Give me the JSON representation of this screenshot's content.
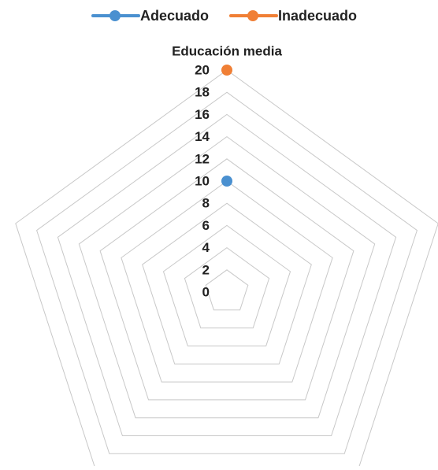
{
  "chart_data": {
    "type": "radar",
    "categories": [
      "Educación media",
      "",
      "",
      "",
      ""
    ],
    "series": [
      {
        "name": "Adecuado",
        "color": "#4A90D0",
        "values": [
          10,
          null,
          null,
          null,
          null
        ]
      },
      {
        "name": "Inadecuado",
        "color": "#F07F35",
        "values": [
          20,
          null,
          null,
          null,
          null
        ]
      }
    ],
    "rlim": [
      0,
      20
    ],
    "ticks": [
      0,
      2,
      4,
      6,
      8,
      10,
      12,
      14,
      16,
      18,
      20
    ],
    "grid": true,
    "grid_color": "#C8C8C8",
    "legend_position": "top"
  }
}
